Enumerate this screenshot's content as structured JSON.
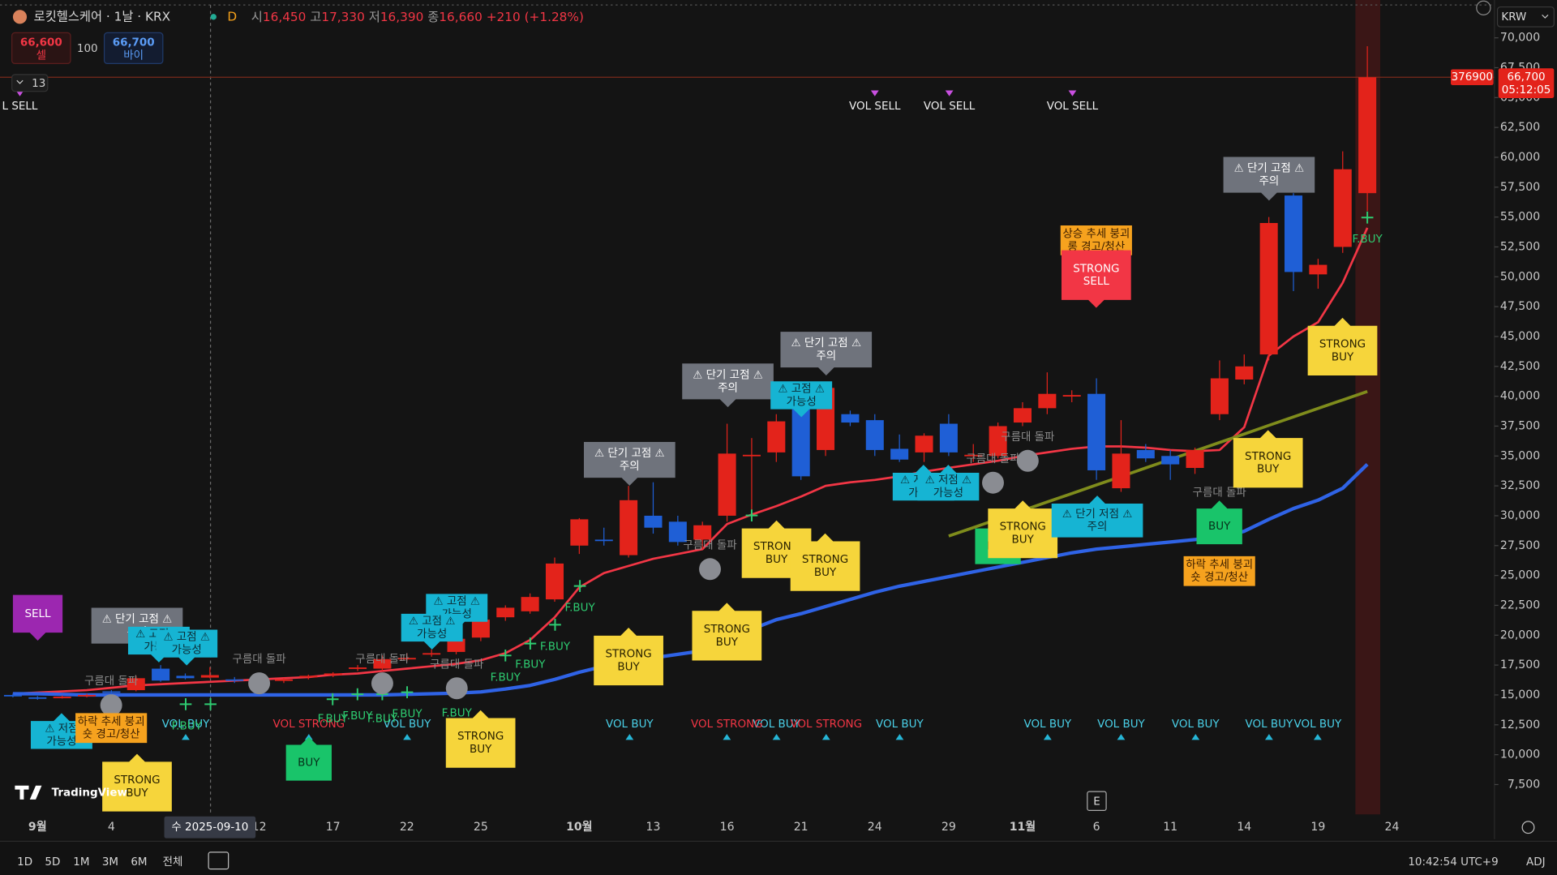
{
  "header": {
    "symbol": "로킷헬스케어 · 1날 · KRX",
    "interval": "D",
    "ohlc": [
      {
        "label": "시",
        "value": "16,450"
      },
      {
        "label": "고",
        "value": "17,330"
      },
      {
        "label": "저",
        "value": "16,390"
      },
      {
        "label": "종",
        "value": "16,660"
      }
    ],
    "change": "+210 (+1.28%)"
  },
  "order": {
    "sell_price": "66,600",
    "sell_label": "셀",
    "qty": "100",
    "buy_price": "66,700",
    "buy_label": "바이"
  },
  "indicator_count": "13",
  "chart_data": {
    "type": "candlestick",
    "categories": [
      null,
      "9월",
      null,
      null,
      "4",
      null,
      null,
      null,
      null,
      null,
      "12",
      null,
      null,
      "17",
      null,
      null,
      "22",
      null,
      null,
      "25",
      null,
      null,
      null,
      "10월",
      null,
      null,
      "13",
      null,
      null,
      "16",
      null,
      null,
      "21",
      null,
      null,
      "24",
      null,
      null,
      "29",
      null,
      null,
      "11월",
      null,
      null,
      "6",
      null,
      null,
      "11",
      null,
      null,
      "14",
      null,
      null,
      "19",
      null,
      null,
      "24"
    ],
    "open": [
      15000,
      14800,
      14800,
      14900,
      15300,
      15400,
      17200,
      16600,
      16450,
      16300,
      16100,
      16200,
      16500,
      16700,
      17200,
      17200,
      18000,
      18400,
      18600,
      19800,
      21500,
      22000,
      23000,
      27500,
      28000,
      26700,
      30000,
      29500,
      28000,
      30000,
      35000,
      35300,
      39000,
      35500,
      38500,
      38000,
      35600,
      35300,
      37700,
      35000,
      35000,
      37800,
      39000,
      40000,
      40200,
      32300,
      35500,
      35000,
      34000,
      38500,
      41400,
      43500,
      56800,
      50200,
      52500,
      57000,
      null
    ],
    "high": [
      15100,
      14900,
      14950,
      15100,
      15400,
      16600,
      17500,
      16800,
      17330,
      16500,
      16300,
      16400,
      16700,
      16900,
      17500,
      18300,
      18500,
      18800,
      19900,
      21500,
      22500,
      23500,
      26500,
      29800,
      29000,
      32500,
      32800,
      30000,
      29500,
      37700,
      36500,
      38500,
      39500,
      41000,
      38800,
      38500,
      36800,
      36900,
      38500,
      36000,
      37800,
      39500,
      42000,
      40500,
      41500,
      38000,
      36000,
      35500,
      35700,
      43000,
      43500,
      55000,
      57000,
      51500,
      60500,
      69300,
      null
    ],
    "low": [
      14800,
      14600,
      14700,
      14800,
      15000,
      15300,
      16100,
      16300,
      16390,
      16000,
      15900,
      16000,
      16300,
      16500,
      17000,
      17000,
      17800,
      18200,
      18400,
      19500,
      21200,
      21800,
      22800,
      26800,
      27500,
      26500,
      28500,
      27500,
      27200,
      29500,
      30000,
      34500,
      33000,
      35000,
      37500,
      35000,
      34500,
      34500,
      35000,
      34500,
      34800,
      37500,
      38500,
      39500,
      33000,
      32000,
      34500,
      33000,
      33500,
      38000,
      41000,
      43000,
      48800,
      49000,
      52000,
      55500,
      null
    ],
    "close": [
      14900,
      14700,
      14850,
      15000,
      15200,
      16400,
      16200,
      16400,
      16660,
      16200,
      16150,
      16300,
      16600,
      16800,
      17300,
      18000,
      18100,
      18500,
      19700,
      21300,
      22300,
      23200,
      26000,
      29700,
      27900,
      31300,
      29000,
      27800,
      29200,
      35200,
      35100,
      37900,
      33300,
      40700,
      37800,
      35500,
      34700,
      36700,
      35300,
      35100,
      37500,
      39000,
      40200,
      40100,
      33800,
      35200,
      34800,
      34300,
      35500,
      41500,
      42500,
      54500,
      50400,
      51000,
      59000,
      66700,
      null
    ],
    "up_color": "#e3231b",
    "down_color": "#1f5fd6",
    "series": [
      {
        "color": "#f23645",
        "values": [
          15100,
          15200,
          15300,
          15400,
          15600,
          15800,
          15900,
          16000,
          16100,
          16200,
          16300,
          16400,
          16500,
          16700,
          16800,
          17000,
          17200,
          17400,
          17600,
          17900,
          18500,
          19600,
          21500,
          24000,
          25200,
          25800,
          26400,
          26800,
          27200,
          29300,
          30100,
          30800,
          31600,
          32500,
          32800,
          33000,
          33300,
          33700,
          34000,
          34300,
          34600,
          35000,
          35300,
          35600,
          35800,
          35800,
          35700,
          35500,
          35400,
          35500,
          37400,
          43400,
          45000,
          46200,
          49500,
          54100,
          null
        ]
      },
      {
        "color": "#2f63e6",
        "values": [
          15100,
          15100,
          15050,
          15000,
          15000,
          15000,
          15000,
          15000,
          15000,
          15000,
          15000,
          15000,
          15000,
          15000,
          15000,
          15000,
          15050,
          15100,
          15150,
          15250,
          15500,
          15800,
          16300,
          16900,
          17400,
          17800,
          18100,
          18400,
          18700,
          19300,
          20500,
          21300,
          21800,
          22400,
          23000,
          23600,
          24100,
          24500,
          24900,
          25300,
          25700,
          26100,
          26500,
          26900,
          27200,
          27400,
          27600,
          27800,
          28000,
          28200,
          28700,
          29700,
          30600,
          31300,
          32300,
          34300,
          null
        ]
      },
      {
        "color": "#7f8c1c",
        "values": [
          null,
          null,
          null,
          null,
          null,
          null,
          null,
          null,
          null,
          null,
          null,
          null,
          null,
          null,
          null,
          null,
          null,
          null,
          null,
          null,
          null,
          null,
          null,
          null,
          null,
          null,
          null,
          null,
          null,
          null,
          null,
          null,
          null,
          null,
          null,
          null,
          null,
          null,
          28300,
          29010,
          29720,
          30440,
          31150,
          31860,
          32570,
          33280,
          34000,
          34710,
          35420,
          36130,
          36840,
          37560,
          38270,
          38980,
          39690,
          40400,
          null
        ]
      }
    ],
    "ylim": [
      5000,
      72750
    ],
    "yticks": [
      {
        "value": 7500,
        "label": "7,500"
      },
      {
        "value": 10000,
        "label": "10,000"
      },
      {
        "value": 12500,
        "label": "12,500"
      },
      {
        "value": 15000,
        "label": "15,000"
      },
      {
        "value": 17500,
        "label": "17,500"
      },
      {
        "value": 20000,
        "label": "20,000"
      },
      {
        "value": 22500,
        "label": "22,500"
      },
      {
        "value": 25000,
        "label": "25,000"
      },
      {
        "value": 27500,
        "label": "27,500"
      },
      {
        "value": 30000,
        "label": "30,000"
      },
      {
        "value": 32500,
        "label": "32,500"
      },
      {
        "value": 35000,
        "label": "35,000"
      },
      {
        "value": 37500,
        "label": "37,500"
      },
      {
        "value": 40000,
        "label": "40,000"
      },
      {
        "value": 42500,
        "label": "42,500"
      },
      {
        "value": 45000,
        "label": "45,000"
      },
      {
        "value": 47500,
        "label": "47,500"
      },
      {
        "value": 50000,
        "label": "50,000"
      },
      {
        "value": 52500,
        "label": "52,500"
      },
      {
        "value": 55000,
        "label": "55,000"
      },
      {
        "value": 57500,
        "label": "57,500"
      },
      {
        "value": 60000,
        "label": "60,000"
      },
      {
        "value": 62500,
        "label": "62,500"
      },
      {
        "value": 65000,
        "label": "65,000"
      },
      {
        "value": 67500,
        "label": "67,500"
      },
      {
        "value": 70000,
        "label": "70,000"
      }
    ],
    "grid": false,
    "currency": "KRW",
    "last_price": {
      "value": 66700,
      "label": "66,700"
    },
    "countdown": "05:12:05",
    "price_marker": 376900,
    "crosshair_label": "수 2025-09-10",
    "event_marker": "E",
    "annotations": [
      {
        "kind": "sell",
        "lines": [
          "SELL"
        ]
      },
      {
        "kind": "peak",
        "lines": [
          "⚠ 단기 고점 ⚠",
          "주의"
        ]
      },
      {
        "kind": "high-warn",
        "lines": [
          "⚠ 고점 ⚠",
          "가능성"
        ]
      },
      {
        "kind": "high-warn",
        "lines": [
          "⚠ 고점 ⚠",
          "가능성"
        ]
      },
      {
        "kind": "high-warn",
        "lines": [
          "⚠ 고점 ⚠",
          "가능성"
        ]
      },
      {
        "kind": "high-warn",
        "lines": [
          "⚠ 고점 ⚠",
          "가능성"
        ]
      },
      {
        "kind": "low-warn",
        "lines": [
          "⚠ 저점",
          "가능성"
        ]
      },
      {
        "kind": "trend-warn",
        "lines": [
          "하락 추세 붕괴",
          "숏 경고/청산"
        ]
      },
      {
        "kind": "strong-buy",
        "lines": [
          "STRONG",
          "BUY"
        ]
      },
      {
        "kind": "buy",
        "lines": [
          "BUY"
        ]
      },
      {
        "kind": "strong-buy",
        "lines": [
          "STRONG",
          "BUY"
        ]
      },
      {
        "kind": "strong-buy",
        "lines": [
          "STRONG",
          "BUY"
        ]
      },
      {
        "kind": "strong-buy",
        "lines": [
          "STRONG",
          "BUY"
        ]
      },
      {
        "kind": "strong-buy",
        "lines": [
          "STRONG",
          "BUY"
        ]
      },
      {
        "kind": "strong-buy",
        "lines": [
          "STRONG",
          "BUY"
        ]
      },
      {
        "kind": "peak",
        "lines": [
          "⚠ 단기 고점 ⚠",
          "주의"
        ]
      },
      {
        "kind": "peak",
        "lines": [
          "⚠ 단기 고점 ⚠",
          "주의"
        ]
      },
      {
        "kind": "peak",
        "lines": [
          "⚠ 단기 고점 ⚠",
          "주의"
        ]
      },
      {
        "kind": "high-warn",
        "lines": [
          "⚠ 고점 ⚠",
          "가능성"
        ]
      },
      {
        "kind": "low-warn",
        "lines": [
          "⚠ 저점 ⚠",
          "가능성"
        ]
      },
      {
        "kind": "low-warn",
        "lines": [
          "⚠ 저점 ⚠",
          "가능성"
        ]
      },
      {
        "kind": "buy",
        "lines": [
          "BUY"
        ]
      },
      {
        "kind": "strong-buy",
        "lines": [
          "STRONG",
          "BUY"
        ]
      },
      {
        "kind": "low-warn-wide",
        "lines": [
          "⚠ 단기 저점 ⚠",
          "주의"
        ]
      },
      {
        "kind": "trend-warn",
        "lines": [
          "상승 추세 붕괴",
          "롱 경고/청산"
        ]
      },
      {
        "kind": "strong-sell",
        "lines": [
          "STRONG",
          "SELL"
        ]
      },
      {
        "kind": "buy",
        "lines": [
          "BUY"
        ]
      },
      {
        "kind": "trend-warn",
        "lines": [
          "하락 추세 붕괴",
          "숏 경고/청산"
        ]
      },
      {
        "kind": "strong-buy",
        "lines": [
          "STRONG",
          "BUY"
        ]
      },
      {
        "kind": "strong-buy",
        "lines": [
          "STRONG",
          "BUY"
        ]
      },
      {
        "kind": "peak",
        "lines": [
          "⚠ 단기 고점 ⚠",
          "주의"
        ]
      }
    ],
    "signals": [
      {
        "kind": "vol-sell",
        "text": "L SELL"
      },
      {
        "kind": "vol-sell",
        "text": "VOL SELL"
      },
      {
        "kind": "vol-sell",
        "text": "VOL SELL"
      },
      {
        "kind": "vol-sell",
        "text": "VOL SELL"
      },
      {
        "kind": "vol-buy",
        "text": "VOL BUY"
      },
      {
        "kind": "vol-buy",
        "text": "VOL BUY"
      },
      {
        "kind": "vol-buy",
        "text": "VOL BUY"
      },
      {
        "kind": "vol-buy",
        "text": "VOL BUY"
      },
      {
        "kind": "vol-buy",
        "text": "VOL BUY"
      },
      {
        "kind": "vol-buy",
        "text": "VOL BUY"
      },
      {
        "kind": "vol-buy",
        "text": "VOL BUY"
      },
      {
        "kind": "vol-buy",
        "text": "VOL BUY"
      },
      {
        "kind": "vol-buy",
        "text": "VOL BUY"
      },
      {
        "kind": "vol-buy",
        "text": "VOL BUY"
      },
      {
        "kind": "vol-strong",
        "text": "VOL STRONG"
      },
      {
        "kind": "vol-strong",
        "text": "VOL STRONG"
      },
      {
        "kind": "vol-strong",
        "text": "VOL STRONG"
      },
      {
        "kind": "fbuy",
        "text": "F.BUY"
      },
      {
        "kind": "fbuy",
        "text": "F.BUY"
      },
      {
        "kind": "fbuy",
        "text": "F.BUY"
      },
      {
        "kind": "fbuy",
        "text": "F.BUY"
      },
      {
        "kind": "fbuy",
        "text": "F.BUY"
      },
      {
        "kind": "fbuy",
        "text": "F.BUY"
      },
      {
        "kind": "fbuy",
        "text": "F.BUY"
      },
      {
        "kind": "fbuy",
        "text": "F.BUY"
      },
      {
        "kind": "fbuy",
        "text": "F.BUY"
      },
      {
        "kind": "fbuy",
        "text": "F.BUY"
      },
      {
        "kind": "fbuy",
        "text": "F.BUY"
      },
      {
        "kind": "cloud",
        "text": "구름대 돌파"
      },
      {
        "kind": "cloud",
        "text": "구름대 돌파"
      },
      {
        "kind": "cloud",
        "text": "구름대 돌파"
      },
      {
        "kind": "cloud",
        "text": "구름대 돌파"
      },
      {
        "kind": "cloud",
        "text": "구름대 돌파"
      },
      {
        "kind": "cloud",
        "text": "구름대 돌파"
      },
      {
        "kind": "cloud",
        "text": "구름대 돌파"
      },
      {
        "kind": "cloud",
        "text": "구름대 돌파"
      }
    ]
  },
  "toolbar": {
    "ranges": [
      "1D",
      "5D",
      "1M",
      "3M",
      "6M",
      "전체"
    ],
    "clock": "10:42:54 UTC+9",
    "adj": "ADJ"
  },
  "logo": "TradingView"
}
